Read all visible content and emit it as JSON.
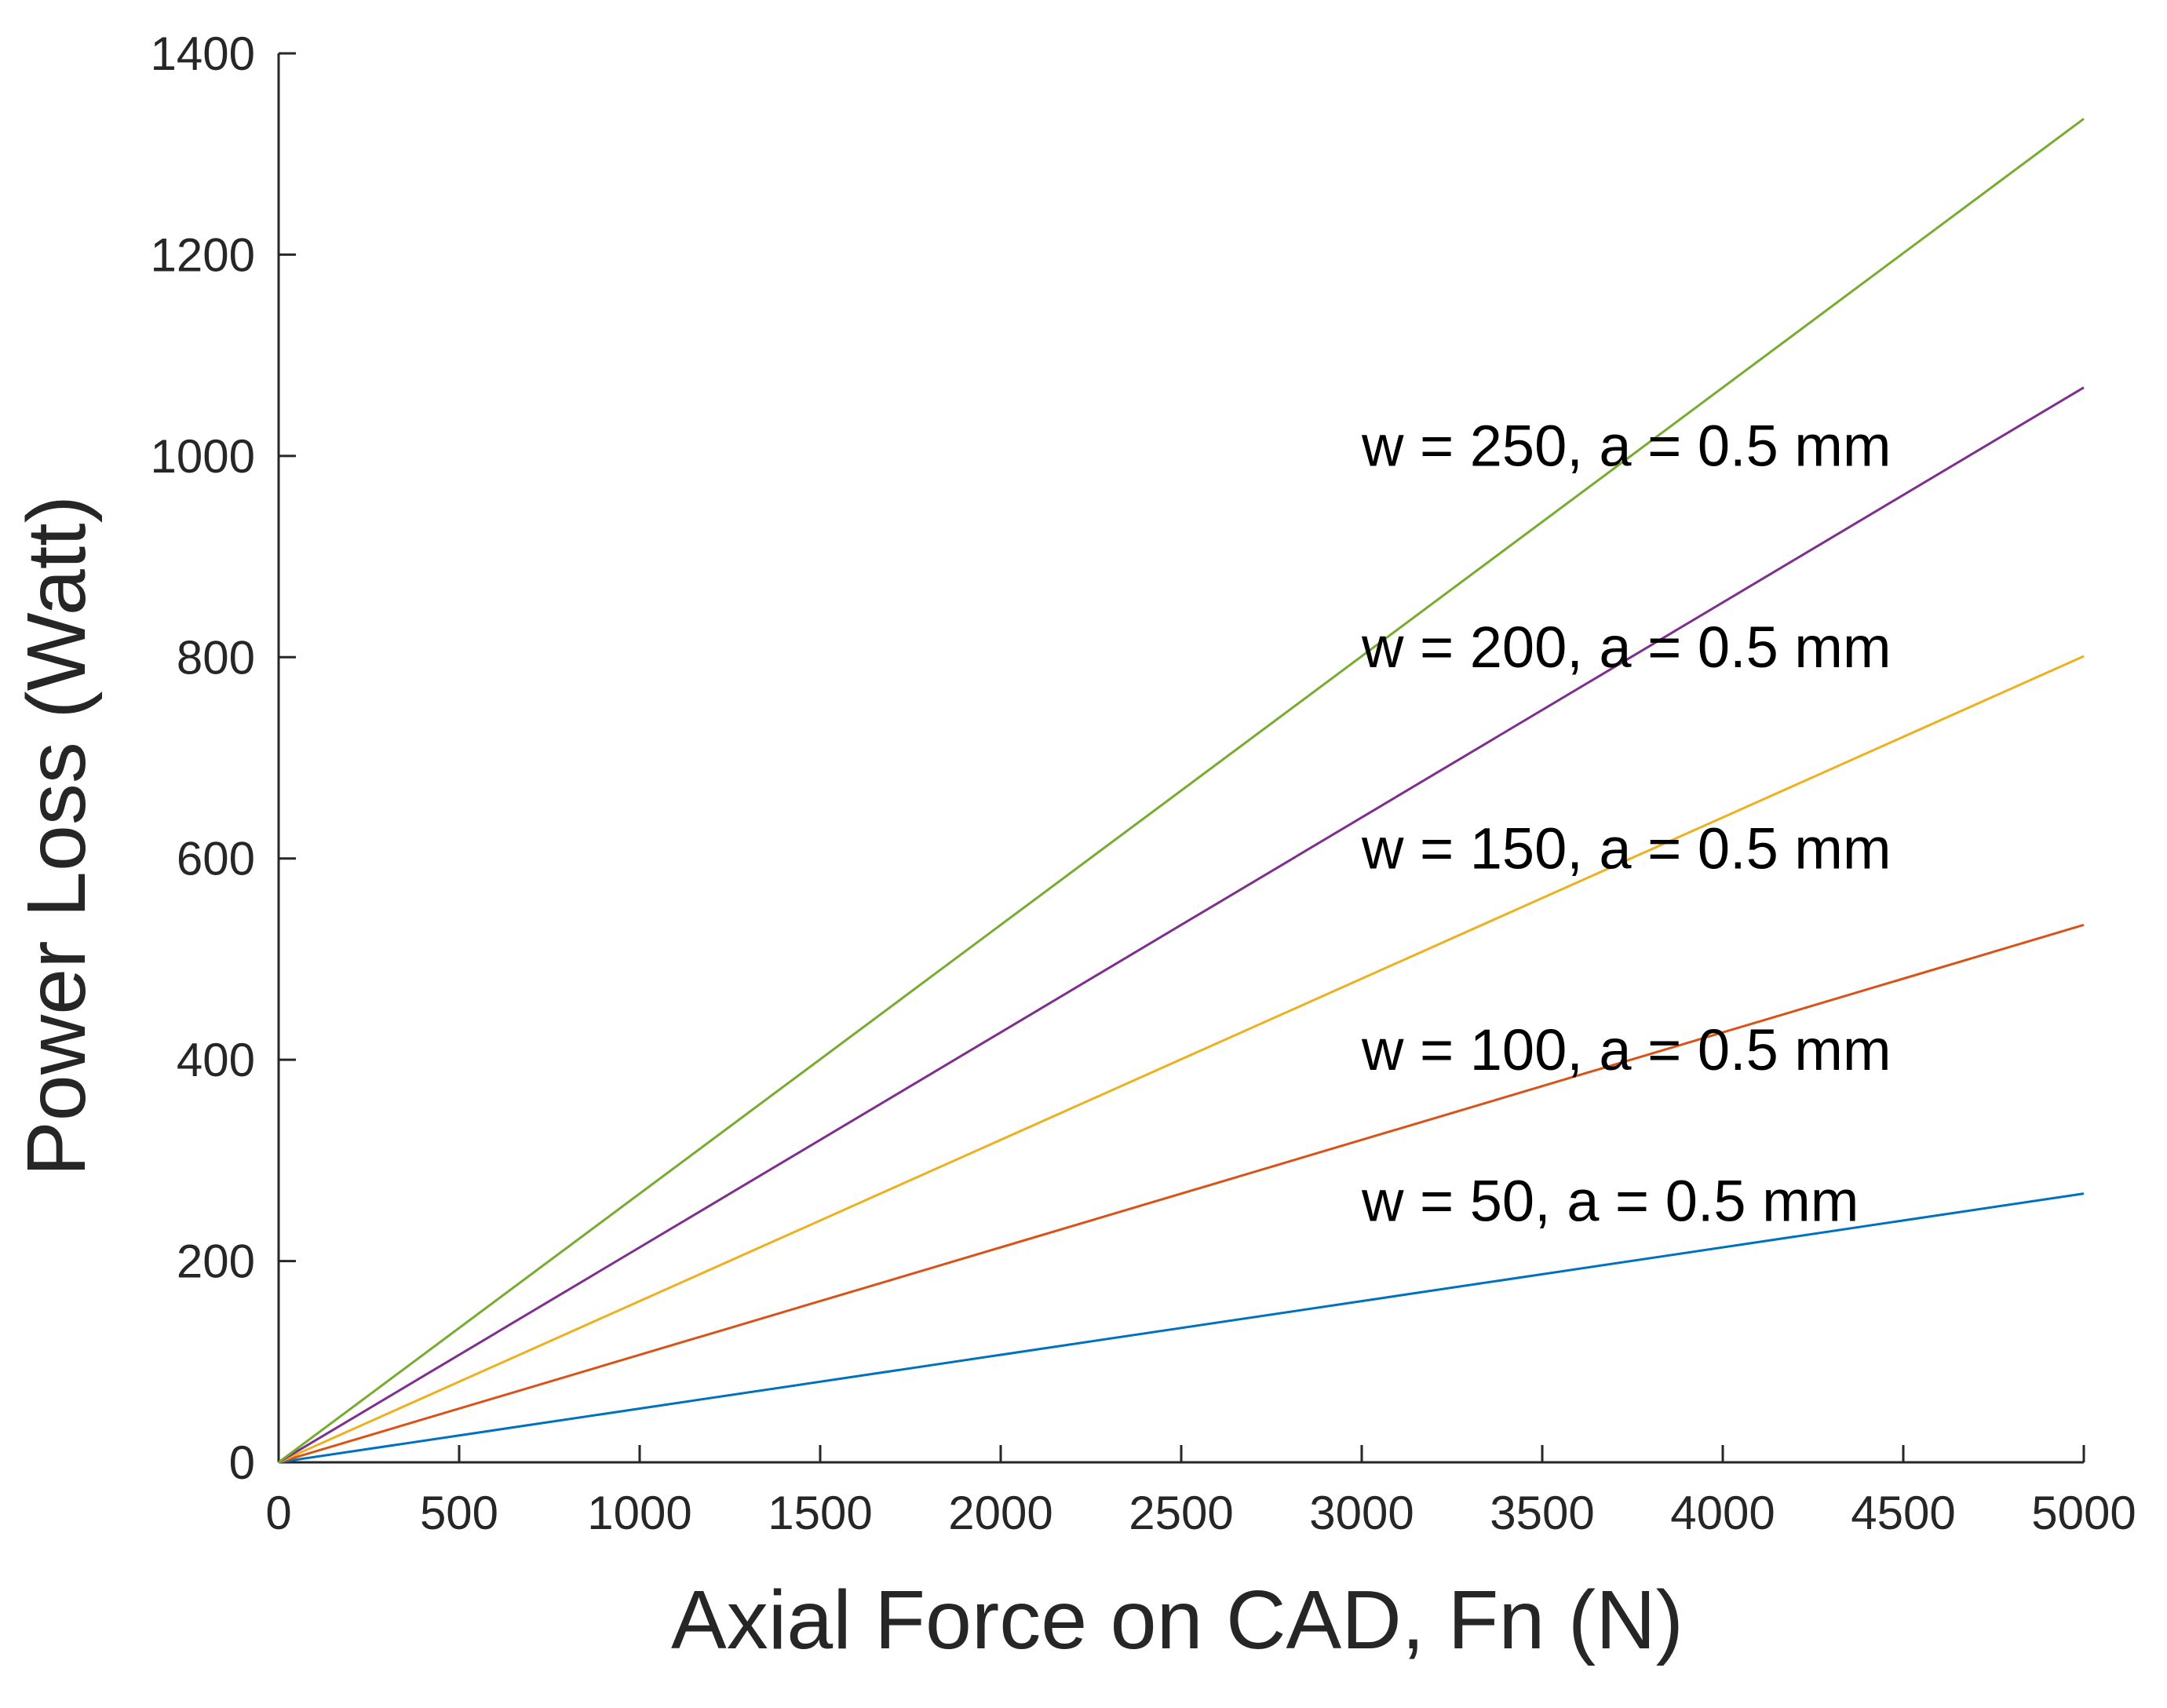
{
  "chart_data": {
    "type": "line",
    "title": "",
    "xlabel": "Axial Force on CAD, Fn (N)",
    "ylabel": "Power Loss (Watt)",
    "xlim": [
      0,
      5000
    ],
    "ylim": [
      0,
      1400
    ],
    "xticks": [
      0,
      500,
      1000,
      1500,
      2000,
      2500,
      3000,
      3500,
      4000,
      4500,
      5000
    ],
    "yticks": [
      0,
      200,
      400,
      600,
      800,
      1000,
      1200,
      1400
    ],
    "xtick_labels": [
      "0",
      "500",
      "1000",
      "1500",
      "2000",
      "2500",
      "3000",
      "3500",
      "4000",
      "4500",
      "5000"
    ],
    "ytick_labels": [
      "0",
      "200",
      "400",
      "600",
      "800",
      "1000",
      "1200",
      "1400"
    ],
    "grid": false,
    "x": [
      0,
      5000
    ],
    "series": [
      {
        "name": "w = 50, a = 0.5 mm",
        "values": [
          0,
          267
        ],
        "color": "#0072BD",
        "label_at": [
          3000,
          240
        ]
      },
      {
        "name": "w = 100, a = 0.5 mm",
        "values": [
          0,
          534
        ],
        "color": "#D95319",
        "label_at": [
          3000,
          390
        ]
      },
      {
        "name": "w = 150, a = 0.5 mm",
        "values": [
          0,
          801
        ],
        "color": "#EDB120",
        "label_at": [
          3000,
          590
        ]
      },
      {
        "name": "w = 200, a = 0.5 mm",
        "values": [
          0,
          1068
        ],
        "color": "#7E2F8E",
        "label_at": [
          3000,
          790
        ]
      },
      {
        "name": "w = 250, a = 0.5 mm",
        "values": [
          0,
          1335
        ],
        "color": "#77AC30",
        "label_at": [
          3000,
          990
        ]
      }
    ]
  }
}
